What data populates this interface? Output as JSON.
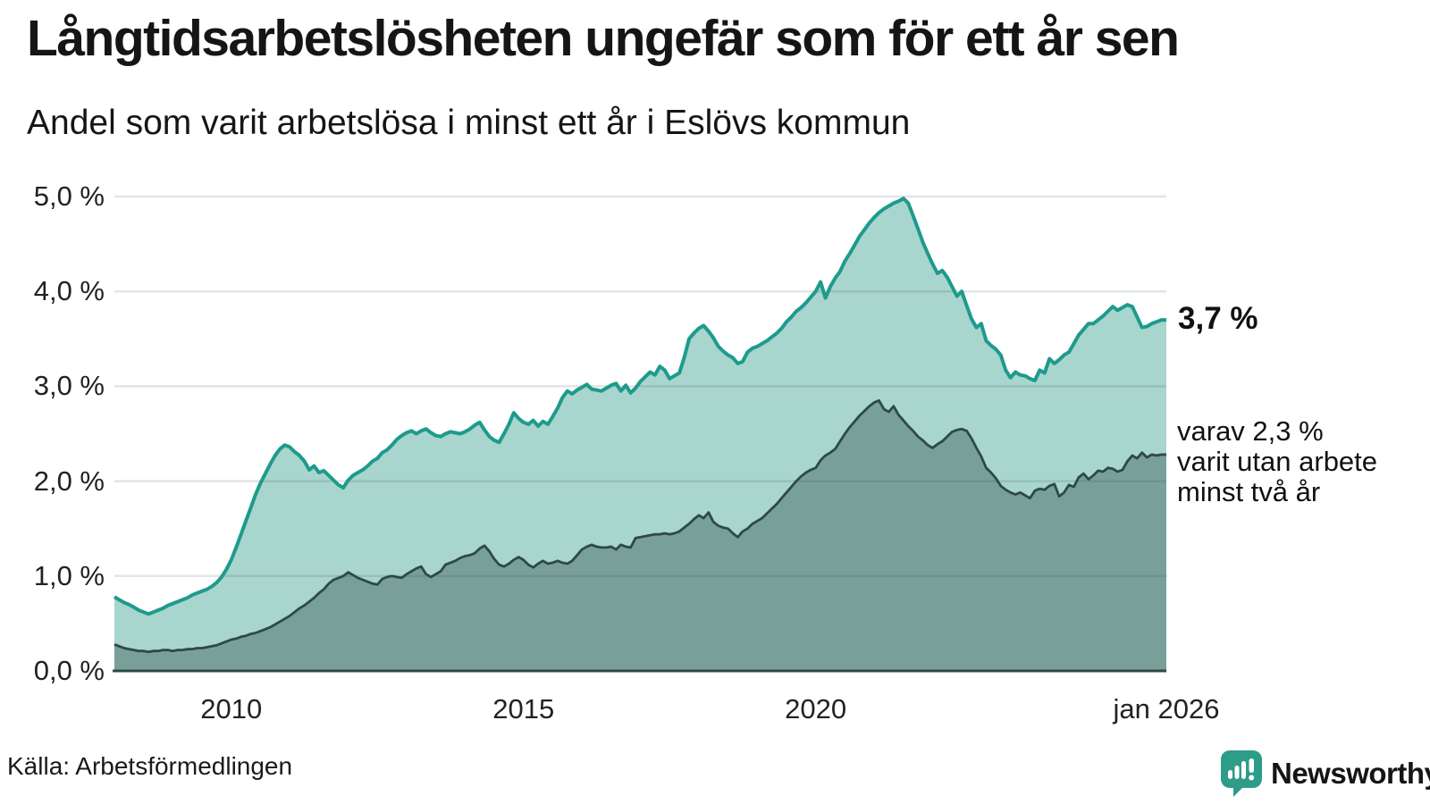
{
  "title": "Långtidsarbetslösheten ungefär som för ett år sen",
  "subtitle": "Andel som varit arbetslösa i minst ett år i Eslövs kommun",
  "source": "Källa: Arbetsförmedlingen",
  "logo": {
    "text": "Newsworthy",
    "color": "#2d9c89"
  },
  "annotations": {
    "total_label": "3,7 %",
    "breakdown": [
      "varav 2,3 %",
      "varit utan arbete",
      "minst två år"
    ]
  },
  "colors": {
    "accent_teal_line": "#1d9b8c",
    "area_light": "#a8d5cd",
    "area_dark": "#79a098",
    "dark_line": "#2d4a43",
    "grid": "rgba(40,55,55,0.13)",
    "text": "#151515"
  },
  "chart_data": {
    "type": "area",
    "title": "Långtidsarbetslösheten ungefär som för ett år sen",
    "subtitle": "Andel som varit arbetslösa i minst ett år i Eslövs kommun",
    "freq": "monthly",
    "x_start": "2008-01",
    "x_end": "2026-01",
    "ylim": [
      0,
      5.2
    ],
    "grid": true,
    "legend": "none",
    "y_ticks": [
      {
        "label": "5,0 %",
        "value": 5
      },
      {
        "label": "4,0 %",
        "value": 4
      },
      {
        "label": "3,0 %",
        "value": 3
      },
      {
        "label": "2,0 %",
        "value": 2
      },
      {
        "label": "1,0 %",
        "value": 1
      },
      {
        "label": "0,0 %",
        "value": 0
      }
    ],
    "x_ticks": [
      {
        "label": "2010",
        "month_index": 24
      },
      {
        "label": "2015",
        "month_index": 84
      },
      {
        "label": "2020",
        "month_index": 144
      },
      {
        "label": "jan 2026",
        "month_index": 216
      }
    ],
    "series": [
      {
        "name": "Andel arbetslösa minst ett år",
        "line_color": "#1d9b8c",
        "fill_color": "#a8d5cd",
        "end_value_label": "3,7 %",
        "values": [
          0.78,
          0.75,
          0.72,
          0.7,
          0.67,
          0.64,
          0.62,
          0.6,
          0.62,
          0.64,
          0.66,
          0.69,
          0.71,
          0.73,
          0.75,
          0.77,
          0.8,
          0.82,
          0.84,
          0.86,
          0.89,
          0.93,
          0.99,
          1.07,
          1.17,
          1.3,
          1.44,
          1.58,
          1.72,
          1.86,
          1.98,
          2.08,
          2.18,
          2.27,
          2.34,
          2.38,
          2.36,
          2.31,
          2.27,
          2.21,
          2.12,
          2.16,
          2.09,
          2.11,
          2.06,
          2.01,
          1.96,
          1.93,
          2.01,
          2.06,
          2.09,
          2.12,
          2.16,
          2.21,
          2.24,
          2.3,
          2.33,
          2.38,
          2.44,
          2.48,
          2.51,
          2.53,
          2.5,
          2.53,
          2.55,
          2.51,
          2.48,
          2.47,
          2.5,
          2.52,
          2.51,
          2.5,
          2.52,
          2.55,
          2.59,
          2.62,
          2.54,
          2.47,
          2.43,
          2.41,
          2.5,
          2.6,
          2.72,
          2.66,
          2.62,
          2.6,
          2.64,
          2.58,
          2.63,
          2.6,
          2.68,
          2.77,
          2.88,
          2.95,
          2.92,
          2.96,
          2.99,
          3.02,
          2.97,
          2.96,
          2.95,
          2.98,
          3.01,
          3.03,
          2.95,
          3.01,
          2.93,
          2.98,
          3.05,
          3.1,
          3.15,
          3.12,
          3.21,
          3.17,
          3.08,
          3.11,
          3.14,
          3.3,
          3.5,
          3.56,
          3.61,
          3.64,
          3.58,
          3.51,
          3.42,
          3.37,
          3.33,
          3.3,
          3.24,
          3.26,
          3.36,
          3.4,
          3.42,
          3.45,
          3.48,
          3.52,
          3.56,
          3.61,
          3.68,
          3.73,
          3.79,
          3.83,
          3.88,
          3.94,
          4.0,
          4.1,
          3.93,
          4.05,
          4.14,
          4.21,
          4.32,
          4.4,
          4.49,
          4.58,
          4.65,
          4.72,
          4.78,
          4.83,
          4.87,
          4.9,
          4.93,
          4.95,
          4.98,
          4.93,
          4.8,
          4.66,
          4.52,
          4.4,
          4.29,
          4.19,
          4.22,
          4.15,
          4.05,
          3.95,
          4.0,
          3.85,
          3.71,
          3.62,
          3.66,
          3.48,
          3.43,
          3.39,
          3.33,
          3.17,
          3.09,
          3.15,
          3.12,
          3.11,
          3.08,
          3.06,
          3.17,
          3.14,
          3.29,
          3.24,
          3.28,
          3.33,
          3.36,
          3.45,
          3.54,
          3.6,
          3.66,
          3.66,
          3.7,
          3.74,
          3.79,
          3.84,
          3.8,
          3.83,
          3.86,
          3.84,
          3.73,
          3.62,
          3.63,
          3.66,
          3.68,
          3.7,
          3.7
        ]
      },
      {
        "name": "varav utan arbete minst två år",
        "line_color": "#2d4a43",
        "fill_color": "#79a098",
        "end_value_label": "2,3 %",
        "values": [
          0.28,
          0.26,
          0.24,
          0.23,
          0.22,
          0.21,
          0.21,
          0.2,
          0.21,
          0.21,
          0.22,
          0.22,
          0.21,
          0.22,
          0.22,
          0.23,
          0.23,
          0.24,
          0.24,
          0.25,
          0.26,
          0.27,
          0.29,
          0.31,
          0.33,
          0.34,
          0.36,
          0.37,
          0.39,
          0.4,
          0.42,
          0.44,
          0.46,
          0.49,
          0.52,
          0.55,
          0.58,
          0.62,
          0.66,
          0.69,
          0.73,
          0.77,
          0.82,
          0.86,
          0.92,
          0.96,
          0.98,
          1.0,
          1.04,
          1.01,
          0.98,
          0.96,
          0.94,
          0.92,
          0.91,
          0.97,
          0.99,
          1.0,
          0.99,
          0.98,
          1.02,
          1.05,
          1.08,
          1.1,
          1.02,
          0.99,
          1.02,
          1.05,
          1.12,
          1.14,
          1.16,
          1.19,
          1.21,
          1.22,
          1.24,
          1.29,
          1.32,
          1.26,
          1.18,
          1.12,
          1.1,
          1.13,
          1.17,
          1.2,
          1.17,
          1.12,
          1.09,
          1.13,
          1.16,
          1.13,
          1.14,
          1.16,
          1.14,
          1.13,
          1.16,
          1.22,
          1.28,
          1.31,
          1.33,
          1.31,
          1.3,
          1.3,
          1.31,
          1.28,
          1.33,
          1.31,
          1.3,
          1.4,
          1.41,
          1.42,
          1.43,
          1.44,
          1.44,
          1.45,
          1.44,
          1.45,
          1.47,
          1.51,
          1.55,
          1.6,
          1.64,
          1.61,
          1.67,
          1.57,
          1.53,
          1.51,
          1.5,
          1.45,
          1.41,
          1.47,
          1.5,
          1.55,
          1.58,
          1.61,
          1.66,
          1.71,
          1.76,
          1.82,
          1.88,
          1.94,
          2.0,
          2.05,
          2.09,
          2.12,
          2.14,
          2.22,
          2.27,
          2.3,
          2.34,
          2.42,
          2.5,
          2.57,
          2.63,
          2.69,
          2.74,
          2.79,
          2.83,
          2.85,
          2.76,
          2.73,
          2.79,
          2.7,
          2.64,
          2.58,
          2.53,
          2.47,
          2.43,
          2.38,
          2.35,
          2.39,
          2.42,
          2.47,
          2.52,
          2.54,
          2.55,
          2.53,
          2.45,
          2.35,
          2.26,
          2.14,
          2.09,
          2.03,
          1.95,
          1.91,
          1.88,
          1.86,
          1.88,
          1.85,
          1.82,
          1.9,
          1.92,
          1.91,
          1.95,
          1.97,
          1.84,
          1.88,
          1.96,
          1.94,
          2.04,
          2.08,
          2.02,
          2.06,
          2.11,
          2.1,
          2.14,
          2.13,
          2.1,
          2.12,
          2.21,
          2.27,
          2.24,
          2.3,
          2.25,
          2.28,
          2.27,
          2.28,
          2.28
        ]
      }
    ]
  }
}
